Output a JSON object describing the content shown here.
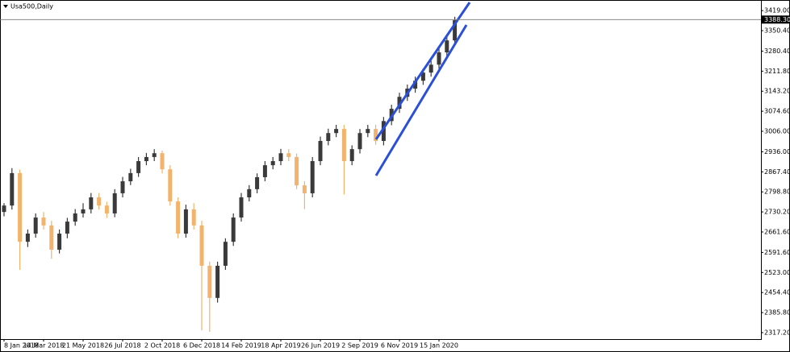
{
  "chart_data": {
    "type": "candlestick",
    "title": "Usa500,Daily",
    "categories": [
      "8 Jan 2018",
      null,
      null,
      null,
      null,
      "14 Mar 2018",
      null,
      null,
      null,
      null,
      "21 May 2018",
      null,
      null,
      null,
      null,
      "26 Jul 2018",
      null,
      null,
      null,
      null,
      "2 Oct 2018",
      null,
      null,
      null,
      null,
      "6 Dec 2018",
      null,
      null,
      null,
      null,
      "14 Feb 2019",
      null,
      null,
      null,
      null,
      "18 Apr 2019",
      null,
      null,
      null,
      null,
      "26 Jun 2019",
      null,
      null,
      null,
      null,
      "2 Sep 2019",
      null,
      null,
      null,
      null,
      "6 Nov 2019",
      null,
      null,
      null,
      null,
      "15 Jan 2020",
      null,
      null
    ],
    "open": [
      2730,
      2752,
      2863,
      2628,
      2656,
      2711,
      2684,
      2601,
      2656,
      2697,
      2725,
      2739,
      2780,
      2752,
      2725,
      2794,
      2835,
      2863,
      2904,
      2918,
      2931,
      2876,
      2766,
      2656,
      2739,
      2684,
      2546,
      2436,
      2546,
      2628,
      2711,
      2780,
      2808,
      2849,
      2890,
      2904,
      2931,
      2918,
      2821,
      2794,
      2904,
      2973,
      3000,
      3014,
      2904,
      2945,
      3000,
      3014,
      2973,
      3041,
      3083,
      3124,
      3152,
      3179,
      3207,
      3234,
      3276,
      3317
    ],
    "high": [
      2760,
      2880,
      2875,
      2670,
      2725,
      2730,
      2700,
      2670,
      2710,
      2740,
      2760,
      2795,
      2795,
      2765,
      2808,
      2850,
      2878,
      2918,
      2932,
      2945,
      2940,
      2890,
      2780,
      2755,
      2760,
      2700,
      2560,
      2560,
      2640,
      2725,
      2795,
      2822,
      2862,
      2904,
      2918,
      2946,
      2945,
      2930,
      2835,
      2918,
      2988,
      3015,
      3028,
      3028,
      2958,
      3014,
      3028,
      3028,
      3055,
      3097,
      3138,
      3166,
      3193,
      3221,
      3248,
      3290,
      3331,
      3398
    ],
    "low": [
      2715,
      2738,
      2532,
      2610,
      2642,
      2670,
      2570,
      2588,
      2640,
      2683,
      2711,
      2725,
      2738,
      2710,
      2712,
      2780,
      2822,
      2850,
      2890,
      2904,
      2862,
      2752,
      2640,
      2642,
      2670,
      2325,
      2320,
      2420,
      2532,
      2614,
      2697,
      2766,
      2794,
      2835,
      2876,
      2890,
      2904,
      2808,
      2740,
      2780,
      2890,
      2958,
      2986,
      2790,
      2890,
      2930,
      2986,
      2960,
      2958,
      3027,
      3069,
      3110,
      3138,
      3165,
      3193,
      3220,
      3262,
      3303
    ],
    "close": [
      2752,
      2863,
      2628,
      2656,
      2711,
      2684,
      2601,
      2656,
      2697,
      2725,
      2739,
      2780,
      2752,
      2725,
      2794,
      2835,
      2863,
      2904,
      2918,
      2931,
      2876,
      2766,
      2656,
      2739,
      2684,
      2546,
      2436,
      2546,
      2628,
      2711,
      2780,
      2808,
      2849,
      2890,
      2904,
      2931,
      2918,
      2821,
      2794,
      2904,
      2973,
      3000,
      3014,
      2904,
      2945,
      3000,
      3014,
      2973,
      3041,
      3083,
      3124,
      3152,
      3179,
      3207,
      3234,
      3276,
      3317,
      3386
    ],
    "up_color": "#3a3a3a",
    "down_color": "#f2b36c",
    "ylim": [
      2295,
      3447
    ],
    "yticks": [
      {
        "value": 3419,
        "label": "3419.00"
      },
      {
        "value": 3350.4,
        "label": "3350.40"
      },
      {
        "value": 3280.4,
        "label": "3280.40"
      },
      {
        "value": 3211.8,
        "label": "3211.80"
      },
      {
        "value": 3143.2,
        "label": "3143.20"
      },
      {
        "value": 3074.6,
        "label": "3074.60"
      },
      {
        "value": 3006,
        "label": "3006.00"
      },
      {
        "value": 2936,
        "label": "2936.00"
      },
      {
        "value": 2867.4,
        "label": "2867.40"
      },
      {
        "value": 2798.8,
        "label": "2798.80"
      },
      {
        "value": 2730.2,
        "label": "2730.20"
      },
      {
        "value": 2661.6,
        "label": "2661.60"
      },
      {
        "value": 2591.6,
        "label": "2591.60"
      },
      {
        "value": 2523,
        "label": "2523.00"
      },
      {
        "value": 2454.4,
        "label": "2454.40"
      },
      {
        "value": 2385.8,
        "label": "2385.80"
      },
      {
        "value": 2317.2,
        "label": "2317.20"
      }
    ],
    "last_price": {
      "value": 3388.3,
      "label": "3388.30"
    }
  }
}
